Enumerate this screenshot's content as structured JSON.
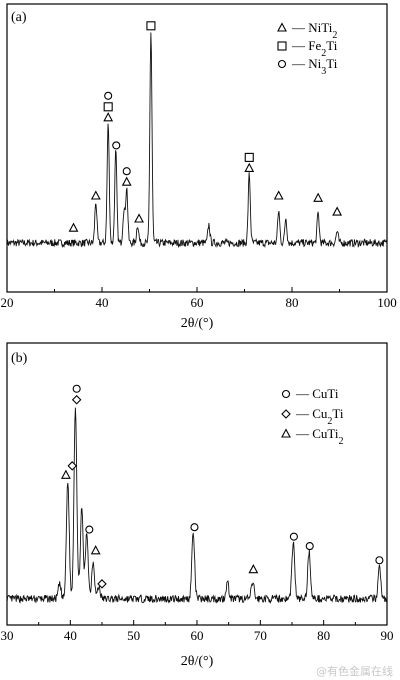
{
  "chart_data": [
    {
      "type": "line",
      "panel_label": "(a)",
      "xlabel": "2θ/(°)",
      "ylabel": "",
      "xlim": [
        20,
        100
      ],
      "ylim": [
        0,
        100
      ],
      "xticks": [
        "20",
        "40",
        "60",
        "80",
        "100"
      ],
      "xtick_values": [
        20,
        40,
        60,
        80,
        100
      ],
      "grid": false,
      "legend_position": "top-right",
      "legend": [
        {
          "symbol": "triangle",
          "label": "— NiTi",
          "sub": "2"
        },
        {
          "symbol": "square",
          "label": "— Fe",
          "sub": "2",
          "after": "Ti"
        },
        {
          "symbol": "circle",
          "label": "— Ni",
          "sub": "3",
          "after": "Ti"
        }
      ],
      "peaks": [
        {
          "x": 38.7,
          "h": 18
        },
        {
          "x": 41.3,
          "h": 52
        },
        {
          "x": 42.9,
          "h": 40
        },
        {
          "x": 44.6,
          "h": 14
        },
        {
          "x": 45.2,
          "h": 24
        },
        {
          "x": 47.5,
          "h": 8
        },
        {
          "x": 50.3,
          "h": 92
        },
        {
          "x": 62.5,
          "h": 8
        },
        {
          "x": 71.0,
          "h": 30
        },
        {
          "x": 77.2,
          "h": 14
        },
        {
          "x": 78.7,
          "h": 11
        },
        {
          "x": 85.5,
          "h": 13
        },
        {
          "x": 89.5,
          "h": 5
        }
      ],
      "markers": [
        {
          "x": 34.0,
          "y": 6,
          "symbols": [
            "triangle"
          ]
        },
        {
          "x": 38.7,
          "y": 20,
          "symbols": [
            "triangle"
          ]
        },
        {
          "x": 41.3,
          "y": 54,
          "symbols": [
            "triangle",
            "square",
            "circle"
          ]
        },
        {
          "x": 43.0,
          "y": 42,
          "symbols": [
            "circle"
          ]
        },
        {
          "x": 45.2,
          "y": 26,
          "symbols": [
            "triangle",
            "circle"
          ]
        },
        {
          "x": 47.8,
          "y": 10,
          "symbols": [
            "triangle"
          ]
        },
        {
          "x": 50.3,
          "y": 94,
          "symbols": [
            "square"
          ]
        },
        {
          "x": 71.0,
          "y": 32,
          "symbols": [
            "triangle",
            "square"
          ]
        },
        {
          "x": 77.2,
          "y": 20,
          "symbols": [
            "triangle"
          ]
        },
        {
          "x": 85.5,
          "y": 19,
          "symbols": [
            "triangle"
          ]
        },
        {
          "x": 89.5,
          "y": 13,
          "symbols": [
            "triangle"
          ]
        }
      ]
    },
    {
      "type": "line",
      "panel_label": "(b)",
      "xlabel": "2θ/(°)",
      "ylabel": "",
      "xlim": [
        30,
        90
      ],
      "ylim": [
        0,
        100
      ],
      "xticks": [
        "30",
        "40",
        "50",
        "60",
        "70",
        "80",
        "90"
      ],
      "xtick_values": [
        30,
        40,
        50,
        60,
        70,
        80,
        90
      ],
      "grid": false,
      "legend_position": "top-right",
      "legend": [
        {
          "symbol": "circle",
          "label": "— CuTi"
        },
        {
          "symbol": "diamond",
          "label": "— Cu",
          "sub": "2",
          "after": "Ti"
        },
        {
          "symbol": "triangle",
          "label": "— CuTi",
          "sub": "2"
        }
      ],
      "peaks": [
        {
          "x": 38.3,
          "h": 6
        },
        {
          "x": 39.6,
          "h": 50
        },
        {
          "x": 40.8,
          "h": 82
        },
        {
          "x": 41.8,
          "h": 38
        },
        {
          "x": 42.6,
          "h": 28
        },
        {
          "x": 43.6,
          "h": 16
        },
        {
          "x": 44.5,
          "h": 5
        },
        {
          "x": 59.4,
          "h": 28
        },
        {
          "x": 64.8,
          "h": 7
        },
        {
          "x": 68.8,
          "h": 7
        },
        {
          "x": 75.2,
          "h": 24
        },
        {
          "x": 77.7,
          "h": 20
        },
        {
          "x": 88.8,
          "h": 13
        }
      ],
      "markers": [
        {
          "x": 39.3,
          "y": 52,
          "symbols": [
            "triangle"
          ]
        },
        {
          "x": 40.3,
          "y": 56,
          "symbols": [
            "diamond"
          ]
        },
        {
          "x": 41.0,
          "y": 84,
          "symbols": [
            "diamond",
            "circle"
          ]
        },
        {
          "x": 43.0,
          "y": 29,
          "symbols": [
            "circle"
          ]
        },
        {
          "x": 44.0,
          "y": 20,
          "symbols": [
            "triangle"
          ]
        },
        {
          "x": 45.0,
          "y": 6,
          "symbols": [
            "diamond"
          ]
        },
        {
          "x": 59.6,
          "y": 30,
          "symbols": [
            "circle"
          ]
        },
        {
          "x": 68.9,
          "y": 12,
          "symbols": [
            "triangle"
          ]
        },
        {
          "x": 75.3,
          "y": 26,
          "symbols": [
            "circle"
          ]
        },
        {
          "x": 77.8,
          "y": 22,
          "symbols": [
            "circle"
          ]
        },
        {
          "x": 88.8,
          "y": 16,
          "symbols": [
            "circle"
          ]
        }
      ]
    }
  ],
  "watermark": "@有色金属在线"
}
